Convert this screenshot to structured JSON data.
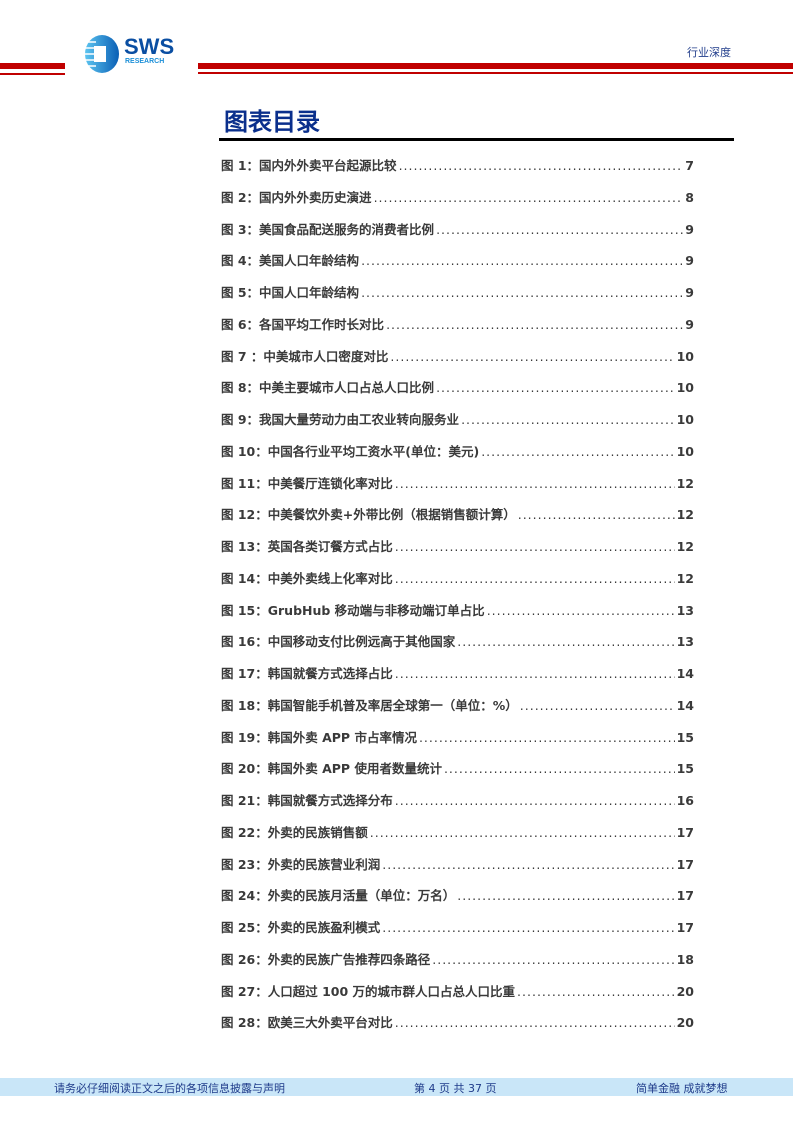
{
  "header": {
    "logo_text": "SWS",
    "logo_sub": "RESEARCH",
    "tag": "行业深度",
    "accent": "#c00000"
  },
  "title": "图表目录",
  "entries": [
    {
      "label": "图 1：国内外外卖平台起源比较",
      "page": "7"
    },
    {
      "label": "图 2：国内外外卖历史演进",
      "page": "8"
    },
    {
      "label": "图 3：美国食品配送服务的消费者比例",
      "page": "9"
    },
    {
      "label": "图 4：美国人口年龄结构",
      "page": "9"
    },
    {
      "label": "图 5：中国人口年龄结构",
      "page": "9"
    },
    {
      "label": "图 6：各国平均工作时长对比",
      "page": "9"
    },
    {
      "label": "图 7 ：中美城市人口密度对比",
      "page": "10"
    },
    {
      "label": "图 8：中美主要城市人口占总人口比例",
      "page": "10"
    },
    {
      "label": "图 9：我国大量劳动力由工农业转向服务业",
      "page": "10"
    },
    {
      "label": "图 10：中国各行业平均工资水平(单位：美元)",
      "page": "10"
    },
    {
      "label": "图 11：中美餐厅连锁化率对比",
      "page": "12"
    },
    {
      "label": "图 12：中美餐饮外卖+外带比例（根据销售额计算）",
      "page": "12"
    },
    {
      "label": "图 13：英国各类订餐方式占比",
      "page": "12"
    },
    {
      "label": "图 14：中美外卖线上化率对比",
      "page": "12"
    },
    {
      "label": "图 15：GrubHub 移动端与非移动端订单占比",
      "page": "13"
    },
    {
      "label": "图 16：中国移动支付比例远高于其他国家",
      "page": "13"
    },
    {
      "label": "图 17：韩国就餐方式选择占比",
      "page": "14"
    },
    {
      "label": "图 18：韩国智能手机普及率居全球第一（单位：%）",
      "page": "14"
    },
    {
      "label": "图 19：韩国外卖 APP 市占率情况",
      "page": "15"
    },
    {
      "label": "图 20：韩国外卖 APP 使用者数量统计",
      "page": "15"
    },
    {
      "label": "图 21：韩国就餐方式选择分布",
      "page": "16"
    },
    {
      "label": "图 22：外卖的民族销售额",
      "page": "17"
    },
    {
      "label": "图 23：外卖的民族营业利润",
      "page": "17"
    },
    {
      "label": "图 24：外卖的民族月活量（单位：万名）",
      "page": "17"
    },
    {
      "label": "图 25：外卖的民族盈利模式",
      "page": "17"
    },
    {
      "label": "图 26：外卖的民族广告推荐四条路径",
      "page": "18"
    },
    {
      "label": "图 27：人口超过 100 万的城市群人口占总人口比重",
      "page": "20"
    },
    {
      "label": "图 28：欧美三大外卖平台对比",
      "page": "20"
    }
  ],
  "footer": {
    "disclaimer": "请务必仔细阅读正文之后的各项信息披露与声明",
    "page_info": "第 4 页 共 37 页",
    "slogan": "简单金融 成就梦想"
  }
}
